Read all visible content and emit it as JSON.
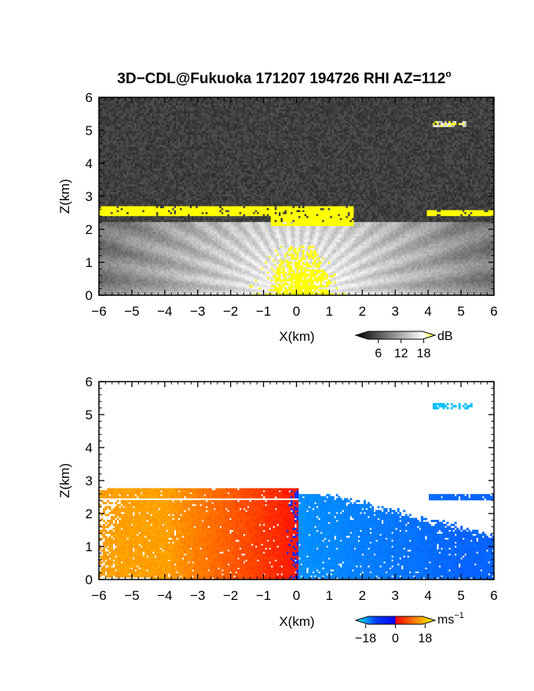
{
  "figure": {
    "title": "3D−CDL@Fukuoka 171207 194726 RHI AZ=112",
    "title_sup": "o"
  },
  "chart_data": [
    {
      "type": "heatmap",
      "panel": "reflectivity",
      "xlabel": "X(km)",
      "ylabel": "Z(km)",
      "xlim": [
        -6,
        6
      ],
      "ylim": [
        0,
        6
      ],
      "xticks": [
        "−6",
        "−5",
        "−4",
        "−3",
        "−2",
        "−1",
        "0",
        "1",
        "2",
        "3",
        "4",
        "5",
        "6"
      ],
      "yticks": [
        "0",
        "1",
        "2",
        "3",
        "4",
        "5",
        "6"
      ],
      "colorbar": {
        "unit": "dB",
        "ticks": [
          "6",
          "12",
          "18"
        ],
        "range": [
          0,
          21
        ],
        "colors": [
          "#000000",
          "#ffffff",
          "#ffff00"
        ]
      },
      "features": {
        "cloud_layer_left": {
          "x": [
            -6,
            1.7
          ],
          "z": [
            2.4,
            2.7
          ],
          "value": 20
        },
        "cloud_layer_right": {
          "x": [
            3.9,
            6
          ],
          "z": [
            2.35,
            2.55
          ],
          "value": 20
        },
        "upper_echo": {
          "x": [
            4.1,
            5.1
          ],
          "z": [
            5.05,
            5.25
          ],
          "value": 14
        },
        "near_surface_echo": {
          "x": [
            -0.7,
            1.0
          ],
          "z": [
            0,
            1.5
          ],
          "value": 20
        },
        "background_noise": 2
      }
    },
    {
      "type": "heatmap",
      "panel": "doppler_velocity",
      "xlabel": "X(km)",
      "ylabel": "Z(km)",
      "xlim": [
        -6,
        6
      ],
      "ylim": [
        0,
        6
      ],
      "xticks": [
        "−6",
        "−5",
        "−4",
        "−3",
        "−2",
        "−1",
        "0",
        "1",
        "2",
        "3",
        "4",
        "5",
        "6"
      ],
      "yticks": [
        "0",
        "1",
        "2",
        "3",
        "4",
        "5",
        "6"
      ],
      "colorbar": {
        "unit": "ms",
        "unit_exp": "−1",
        "ticks": [
          "−18",
          "0",
          "18"
        ],
        "range": [
          -24,
          24
        ],
        "colors": [
          "#00ffff",
          "#0000ff",
          "#ff0000",
          "#ffff00"
        ]
      },
      "features": {
        "left_side_velocity": {
          "x": [
            -6,
            0
          ],
          "z": [
            0,
            2.75
          ],
          "value_range": [
            0,
            12
          ]
        },
        "right_side_velocity": {
          "x": [
            0,
            6
          ],
          "z": [
            0,
            2.6
          ],
          "value_range": [
            -14,
            -8
          ]
        },
        "upper_echo_velocity": {
          "x": [
            4.1,
            5.3
          ],
          "z": [
            5.1,
            5.3
          ],
          "value": -20
        }
      }
    }
  ]
}
